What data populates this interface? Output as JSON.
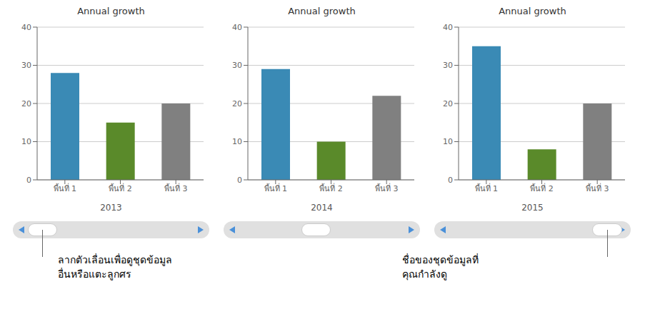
{
  "chart_data": [
    {
      "type": "bar",
      "title": "Annual growth",
      "x_label": "2013",
      "categories": [
        "พื้นที่ 1",
        "พื้นที่ 2",
        "พื้นที่ 3"
      ],
      "values": [
        28,
        15,
        20
      ],
      "colors": [
        "#3a8ab5",
        "#5a8a2a",
        "#808080"
      ],
      "ylim": [
        0,
        40
      ],
      "yticks": [
        0,
        10,
        20,
        30,
        40
      ],
      "grid": true,
      "annotation": "ลากตัวเลื่อนเพื่อดูชุดข้อมูล\nอื่นหรือแตะลูกศร"
    },
    {
      "type": "bar",
      "title": "Annual growth",
      "x_label": "2014",
      "categories": [
        "พื้นที่ 1",
        "พื้นที่ 2",
        "พื้นที่ 3"
      ],
      "values": [
        29,
        10,
        22
      ],
      "colors": [
        "#3a8ab5",
        "#5a8a2a",
        "#808080"
      ],
      "ylim": [
        0,
        40
      ],
      "yticks": [
        0,
        10,
        20,
        30,
        40
      ],
      "grid": true
    },
    {
      "type": "bar",
      "title": "Annual growth",
      "x_label": "2015",
      "categories": [
        "พื้นที่ 1",
        "พื้นที่ 2",
        "พื้นที่ 3"
      ],
      "values": [
        35,
        8,
        20
      ],
      "colors": [
        "#3a8ab5",
        "#5a8a2a",
        "#808080"
      ],
      "ylim": [
        0,
        40
      ],
      "yticks": [
        0,
        10,
        20,
        30,
        40
      ],
      "grid": true,
      "annotation": "ชื่อของชุดข้อมูลที่\nคุณกำลังดู"
    }
  ]
}
